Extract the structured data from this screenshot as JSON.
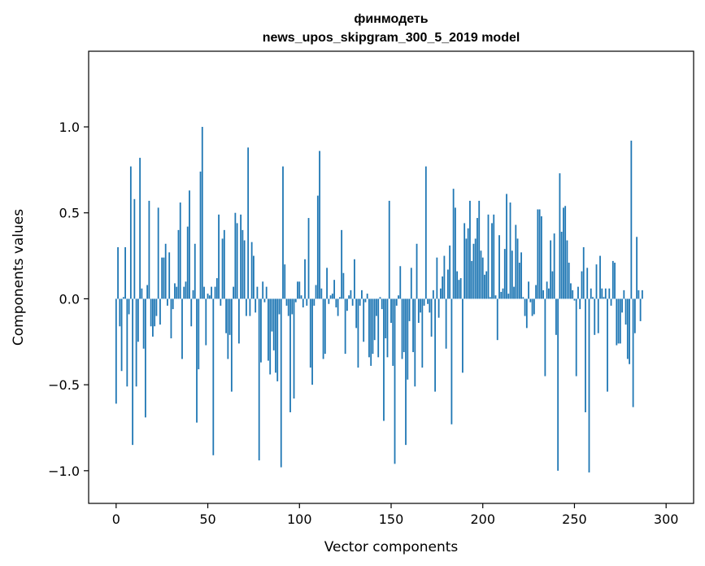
{
  "chart_data": {
    "type": "bar",
    "title": "финмодеть",
    "subtitle": "news_upos_skipgram_300_5_2019 model",
    "xlabel": "Vector components",
    "ylabel": "Components values",
    "xlim": [
      -15,
      315
    ],
    "ylim": [
      -1.19,
      1.44
    ],
    "xticks": [
      0,
      50,
      100,
      150,
      200,
      250,
      300
    ],
    "yticks": [
      -1.0,
      -0.5,
      0.0,
      0.5,
      1.0
    ],
    "xtick_labels": [
      "0",
      "50",
      "100",
      "150",
      "200",
      "250",
      "300"
    ],
    "ytick_labels": [
      "−1.0",
      "−0.5",
      "0.0",
      "0.5",
      "1.0"
    ],
    "color": "#1f77b4",
    "grid": false,
    "values": [
      -0.61,
      0.3,
      -0.16,
      -0.42,
      0.01,
      0.3,
      -0.51,
      -0.09,
      0.77,
      -0.85,
      0.58,
      -0.51,
      -0.25,
      0.82,
      0.06,
      -0.29,
      -0.69,
      0.08,
      0.57,
      -0.16,
      -0.22,
      -0.16,
      -0.1,
      0.53,
      -0.15,
      0.24,
      0.24,
      0.32,
      -0.04,
      0.27,
      -0.23,
      -0.06,
      0.09,
      0.07,
      0.4,
      0.56,
      -0.35,
      0.07,
      0.1,
      0.42,
      0.63,
      -0.16,
      0.05,
      0.32,
      -0.72,
      -0.41,
      0.74,
      1.0,
      0.07,
      -0.27,
      0.03,
      0.02,
      0.07,
      -0.91,
      0.07,
      0.12,
      0.49,
      -0.04,
      0.35,
      0.4,
      -0.2,
      -0.35,
      -0.21,
      -0.54,
      0.07,
      0.5,
      0.44,
      -0.26,
      0.49,
      0.4,
      0.34,
      -0.1,
      0.88,
      -0.1,
      0.33,
      0.25,
      -0.08,
      0.07,
      -0.94,
      -0.37,
      0.1,
      -0.02,
      0.07,
      -0.36,
      -0.44,
      -0.19,
      -0.3,
      -0.43,
      -0.48,
      -0.09,
      -0.98,
      0.77,
      0.2,
      -0.04,
      -0.1,
      -0.66,
      -0.09,
      -0.58,
      -0.02,
      0.1,
      0.1,
      0.02,
      -0.05,
      0.23,
      -0.04,
      0.47,
      -0.4,
      -0.5,
      -0.04,
      0.08,
      0.6,
      0.86,
      0.06,
      -0.35,
      -0.32,
      0.18,
      -0.03,
      0.02,
      0.03,
      0.11,
      -0.05,
      -0.1,
      0.01,
      0.4,
      0.15,
      -0.32,
      -0.07,
      0.02,
      0.05,
      -0.04,
      0.23,
      -0.17,
      -0.4,
      -0.04,
      0.05,
      -0.25,
      -0.02,
      0.03,
      -0.34,
      -0.39,
      -0.32,
      -0.24,
      -0.1,
      -0.34,
      0.01,
      -0.06,
      -0.71,
      -0.23,
      -0.34,
      0.57,
      -0.14,
      -0.39,
      -0.96,
      -0.04,
      0.02,
      0.19,
      -0.35,
      -0.31,
      -0.85,
      -0.47,
      -0.13,
      0.18,
      -0.31,
      -0.51,
      0.32,
      -0.14,
      -0.08,
      -0.4,
      -0.04,
      0.77,
      -0.03,
      -0.08,
      -0.22,
      0.05,
      -0.54,
      0.24,
      -0.11,
      0.06,
      0.13,
      0.25,
      -0.29,
      0.17,
      0.31,
      -0.73,
      0.64,
      0.53,
      0.16,
      0.11,
      0.12,
      -0.43,
      0.44,
      0.35,
      0.41,
      0.57,
      0.22,
      0.32,
      0.35,
      0.47,
      0.57,
      0.28,
      0.24,
      0.14,
      0.16,
      0.49,
      0.01,
      0.44,
      0.49,
      0.02,
      -0.24,
      0.37,
      0.04,
      0.06,
      0.29,
      0.61,
      0.03,
      0.56,
      0.28,
      0.07,
      0.43,
      0.35,
      0.21,
      0.27,
      0.01,
      -0.1,
      -0.17,
      0.1,
      -0.02,
      -0.1,
      -0.09,
      0.08,
      0.52,
      0.52,
      0.48,
      0.05,
      -0.45,
      0.1,
      0.06,
      0.34,
      0.16,
      0.38,
      -0.21,
      -1.0,
      0.73,
      0.39,
      0.53,
      0.54,
      0.34,
      0.21,
      0.09,
      0.05,
      -0.01,
      -0.45,
      0.07,
      -0.06,
      0.16,
      0.3,
      -0.66,
      0.18,
      -1.01,
      0.06,
      0.01,
      -0.21,
      0.2,
      -0.2,
      0.25,
      0.06,
      0.01,
      0.06,
      -0.54,
      0.06,
      -0.04,
      0.22,
      0.21,
      -0.27,
      -0.26,
      -0.26,
      -0.08,
      0.05,
      -0.15,
      -0.35,
      -0.38,
      0.92,
      -0.63,
      -0.2,
      0.36,
      0.05,
      -0.13,
      0.05
    ]
  }
}
